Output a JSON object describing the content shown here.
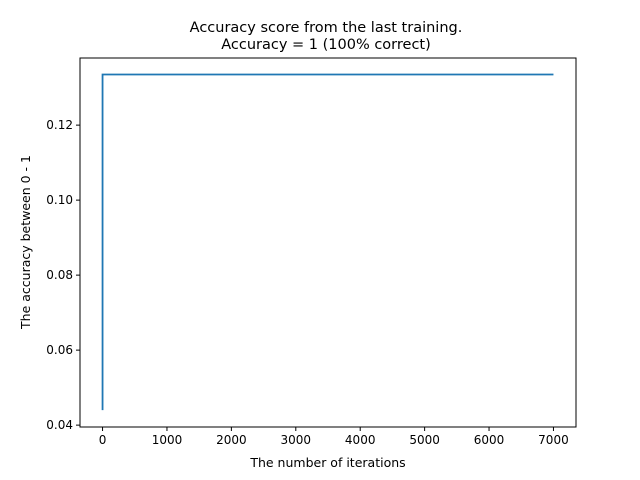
{
  "chart_data": {
    "type": "line",
    "title_line1": "Accuracy score from the last training.",
    "title_line2": "Accuracy = 1 (100% correct)",
    "xlabel": "The number of iterations",
    "ylabel": "The accuracy between 0 - 1",
    "xlim": [
      -350,
      7350
    ],
    "ylim": [
      0.0395,
      0.1379
    ],
    "x_ticks": [
      0,
      1000,
      2000,
      3000,
      4000,
      5000,
      6000,
      7000
    ],
    "x_tick_labels": [
      "0",
      "1000",
      "2000",
      "3000",
      "4000",
      "5000",
      "6000",
      "7000"
    ],
    "y_ticks": [
      0.04,
      0.06,
      0.08,
      0.1,
      0.12
    ],
    "y_tick_labels": [
      "0.04",
      "0.06",
      "0.08",
      "0.10",
      "0.12"
    ],
    "grid": false,
    "series": [
      {
        "color": "#1f77b4",
        "points": [
          [
            0,
            0.044
          ],
          [
            0,
            0.1335
          ],
          [
            7000,
            0.1335
          ]
        ]
      }
    ]
  }
}
